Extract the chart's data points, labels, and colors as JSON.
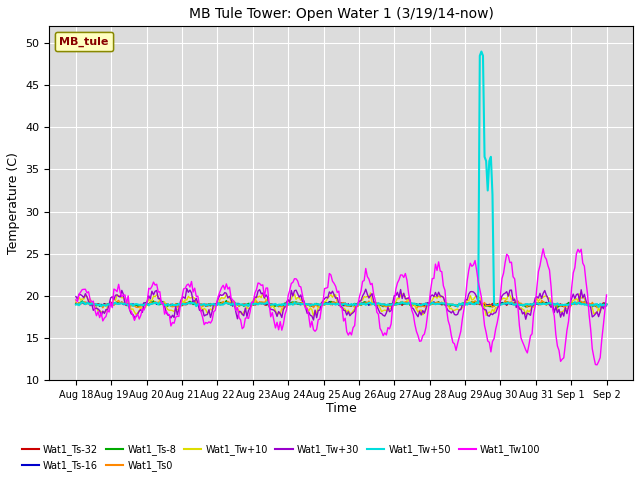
{
  "title": "MB Tule Tower: Open Water 1 (3/19/14-now)",
  "xlabel": "Time",
  "ylabel": "Temperature (C)",
  "ylim": [
    10,
    52
  ],
  "yticks": [
    10,
    15,
    20,
    25,
    30,
    35,
    40,
    45,
    50
  ],
  "bg_color": "#dcdcdc",
  "legend_box_color": "#ffffc0",
  "legend_box_edge_color": "#888800",
  "legend_label_color": "#880000",
  "series": [
    {
      "label": "Wat1_Ts-32",
      "color": "#cc0000",
      "lw": 1.0
    },
    {
      "label": "Wat1_Ts-16",
      "color": "#0000cc",
      "lw": 1.0
    },
    {
      "label": "Wat1_Ts-8",
      "color": "#00aa00",
      "lw": 1.0
    },
    {
      "label": "Wat1_Ts0",
      "color": "#ff8800",
      "lw": 1.0
    },
    {
      "label": "Wat1_Tw+10",
      "color": "#dddd00",
      "lw": 1.0
    },
    {
      "label": "Wat1_Tw+30",
      "color": "#9900cc",
      "lw": 1.0
    },
    {
      "label": "Wat1_Tw+50",
      "color": "#00dddd",
      "lw": 1.5
    },
    {
      "label": "Wat1_Tw100",
      "color": "#ff00ff",
      "lw": 1.0
    }
  ],
  "n_points": 336,
  "x_tick_labels": [
    "Aug 18",
    "Aug 19",
    "Aug 20",
    "Aug 21",
    "Aug 22",
    "Aug 23",
    "Aug 24",
    "Aug 25",
    "Aug 26",
    "Aug 27",
    "Aug 28",
    "Aug 29",
    "Aug 30",
    "Aug 31",
    "Sep 1",
    "Sep 2"
  ],
  "spike_points": [
    [
      252,
      19.0
    ],
    [
      253,
      19.2
    ],
    [
      254,
      19.1
    ],
    [
      255,
      48.5
    ],
    [
      256,
      49.0
    ],
    [
      257,
      48.5
    ],
    [
      258,
      36.5
    ],
    [
      259,
      36.0
    ],
    [
      260,
      32.5
    ],
    [
      261,
      36.0
    ],
    [
      262,
      36.5
    ],
    [
      263,
      32.0
    ],
    [
      264,
      19.0
    ]
  ],
  "grid_color": "#ffffff",
  "grid_lw": 0.8
}
